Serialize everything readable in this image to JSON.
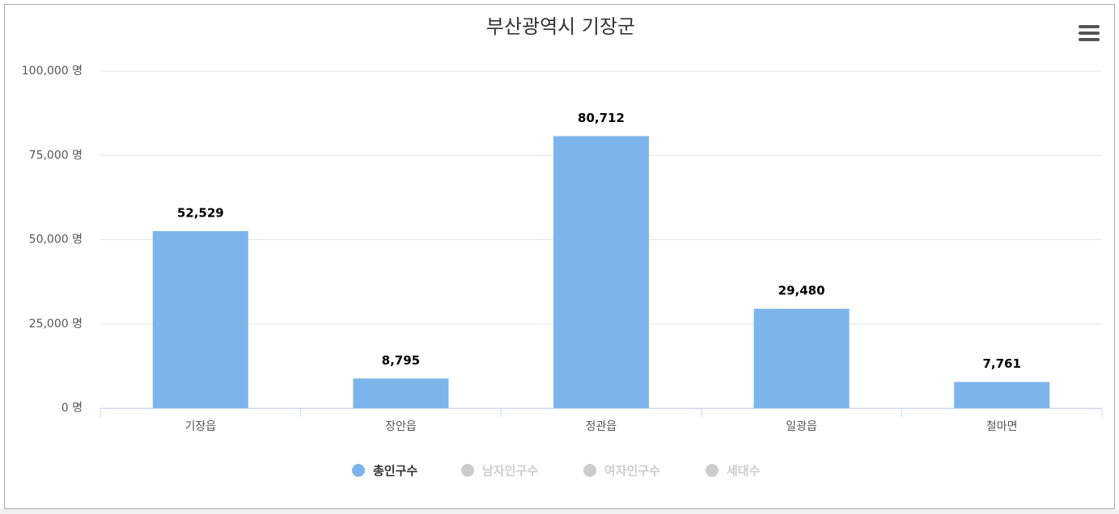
{
  "chart_data": {
    "type": "bar",
    "title": "부산광역시 기장군",
    "categories": [
      "기장읍",
      "장안읍",
      "정관읍",
      "일광읍",
      "철마면"
    ],
    "series": [
      {
        "name": "총인구수",
        "color": "#7cb5ec",
        "visible": true,
        "values": [
          52529,
          8795,
          80712,
          29480,
          7761
        ],
        "value_labels": [
          "52,529",
          "8,795",
          "80,712",
          "29,480",
          "7,761"
        ]
      },
      {
        "name": "남자인구수",
        "color": "#cccccc",
        "visible": false
      },
      {
        "name": "여자인구수",
        "color": "#cccccc",
        "visible": false
      },
      {
        "name": "세대수",
        "color": "#cccccc",
        "visible": false
      }
    ],
    "ylim": [
      0,
      100000
    ],
    "yticks": [
      {
        "value": 0,
        "label": "0 명"
      },
      {
        "value": 25000,
        "label": "25,000 명"
      },
      {
        "value": 50000,
        "label": "50,000 명"
      },
      {
        "value": 75000,
        "label": "75,000 명"
      },
      {
        "value": 100000,
        "label": "100,000 명"
      }
    ],
    "grid": true
  }
}
